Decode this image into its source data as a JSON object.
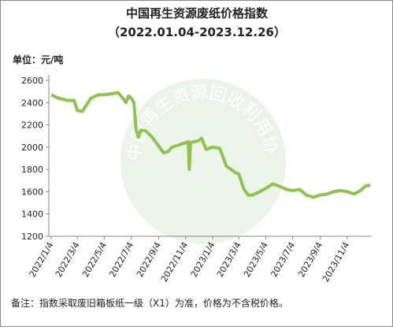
{
  "chart_data": {
    "type": "line",
    "title": "中国再生资源废纸价格指数",
    "subtitle": "（2022.01.04-2023.12.26）",
    "unit_label": "单位：元/吨",
    "note": "备注：指数采取废旧箱板纸一级（X1）为准，价格为不含税价格。",
    "watermark": "中国再生资源回收利用协会废纸分会",
    "xlim": [
      "2022-01-04",
      "2023-12-26"
    ],
    "xticks": [
      {
        "value": "2022-01-04",
        "label": "2022/1/4"
      },
      {
        "value": "2022-03-04",
        "label": "2022/3/4"
      },
      {
        "value": "2022-05-04",
        "label": "2022/5/4"
      },
      {
        "value": "2022-07-04",
        "label": "2022/7/4"
      },
      {
        "value": "2022-09-04",
        "label": "2022/9/4"
      },
      {
        "value": "2022-11-04",
        "label": "2022/11/4"
      },
      {
        "value": "2023-01-04",
        "label": "2023/1/4"
      },
      {
        "value": "2023-03-04",
        "label": "2023/3/4"
      },
      {
        "value": "2023-05-04",
        "label": "2023/5/4"
      },
      {
        "value": "2023-07-04",
        "label": "2023/7/4"
      },
      {
        "value": "2023-09-04",
        "label": "2023/9/4"
      },
      {
        "value": "2023-11-04",
        "label": "2023/11/4"
      }
    ],
    "ylim": [
      1200,
      2600
    ],
    "yticks": [
      1200,
      1400,
      1600,
      1800,
      2000,
      2200,
      2400,
      2600
    ],
    "x": [
      "2022-01-04",
      "2022-01-20",
      "2022-02-10",
      "2022-02-25",
      "2022-03-04",
      "2022-03-15",
      "2022-03-25",
      "2022-04-04",
      "2022-04-20",
      "2022-05-04",
      "2022-05-20",
      "2022-06-04",
      "2022-06-15",
      "2022-06-22",
      "2022-06-28",
      "2022-07-04",
      "2022-07-10",
      "2022-07-15",
      "2022-07-20",
      "2022-07-25",
      "2022-08-04",
      "2022-08-10",
      "2022-08-20",
      "2022-09-04",
      "2022-09-15",
      "2022-09-25",
      "2022-10-04",
      "2022-10-20",
      "2022-11-04",
      "2022-11-10",
      "2022-11-12",
      "2022-11-15",
      "2022-12-04",
      "2022-12-10",
      "2022-12-20",
      "2023-01-04",
      "2023-01-20",
      "2023-02-04",
      "2023-02-15",
      "2023-02-25",
      "2023-03-04",
      "2023-03-15",
      "2023-03-25",
      "2023-04-04",
      "2023-04-20",
      "2023-05-04",
      "2023-05-20",
      "2023-06-04",
      "2023-06-20",
      "2023-07-04",
      "2023-07-20",
      "2023-08-04",
      "2023-08-20",
      "2023-09-04",
      "2023-09-20",
      "2023-10-04",
      "2023-10-20",
      "2023-11-04",
      "2023-11-20",
      "2023-12-04",
      "2023-12-15",
      "2023-12-26"
    ],
    "series": [
      {
        "color": "#8dc34f",
        "values": [
          2470,
          2440,
          2420,
          2420,
          2330,
          2320,
          2380,
          2440,
          2470,
          2470,
          2480,
          2490,
          2440,
          2400,
          2460,
          2440,
          2400,
          2150,
          2090,
          2150,
          2150,
          2130,
          2090,
          2010,
          1950,
          1960,
          2000,
          2020,
          2040,
          2050,
          1800,
          2040,
          2060,
          2080,
          1980,
          2000,
          1990,
          1830,
          1800,
          1770,
          1760,
          1630,
          1570,
          1570,
          1600,
          1630,
          1670,
          1650,
          1620,
          1610,
          1620,
          1570,
          1550,
          1570,
          1580,
          1600,
          1610,
          1600,
          1580,
          1610,
          1650,
          1660
        ]
      }
    ]
  }
}
